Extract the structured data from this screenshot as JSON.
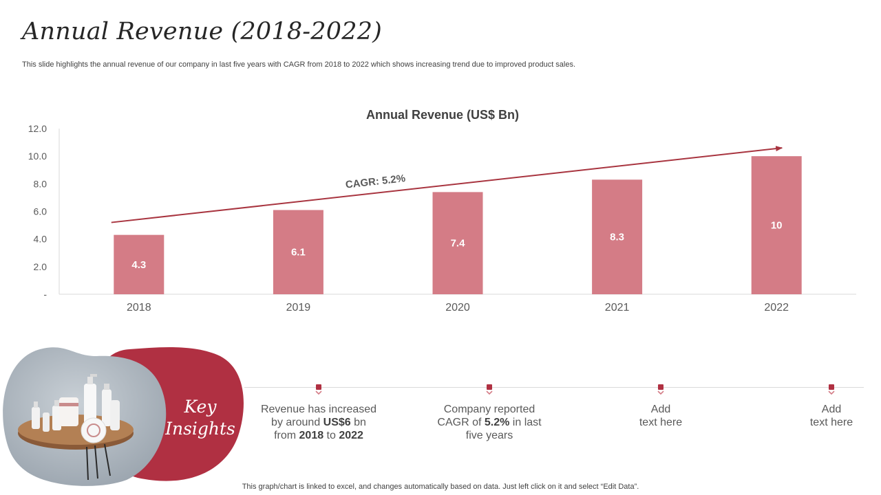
{
  "slide": {
    "title": "Annual Revenue (2018-2022)",
    "subtitle": "This slide highlights the annual revenue of our company in last five years with CAGR from 2018 to 2022 which shows increasing trend due to improved product sales.",
    "footnote": "This graph/chart is linked to excel,  and changes automatically based on data. Just left click on it and select “Edit Data”."
  },
  "colors": {
    "bar": "#d47c86",
    "accent": "#b03042",
    "trend": "#a8343f"
  },
  "chart_data": {
    "type": "bar",
    "title": "Annual Revenue (US$ Bn)",
    "categories": [
      "2018",
      "2019",
      "2020",
      "2021",
      "2022"
    ],
    "values": [
      4.3,
      6.1,
      7.4,
      8.3,
      10
    ],
    "value_labels": [
      "4.3",
      "6.1",
      "7.4",
      "8.3",
      "10"
    ],
    "ylim": [
      0,
      12
    ],
    "yticks": [
      "-",
      "2.0",
      "4.0",
      "6.0",
      "8.0",
      "10.0",
      "12.0"
    ],
    "xlabel": "",
    "ylabel": "",
    "grid": false,
    "trend": {
      "label": "CAGR: 5.2%",
      "from": 5.2,
      "to": 10.6
    }
  },
  "insights": {
    "heading_line1": "Key",
    "heading_line2": "Insights",
    "items": [
      {
        "parts": [
          {
            "t": "Revenue has increased",
            "br": true
          },
          {
            "t": "by around "
          },
          {
            "t": "US$6",
            "b": true
          },
          {
            "t": " bn",
            "br": true
          },
          {
            "t": "from "
          },
          {
            "t": "2018",
            "b": true
          },
          {
            "t": " to "
          },
          {
            "t": "2022",
            "b": true
          }
        ]
      },
      {
        "parts": [
          {
            "t": "Company reported",
            "br": true
          },
          {
            "t": "CAGR of "
          },
          {
            "t": "5.2%",
            "b": true
          },
          {
            "t": " in last",
            "br": true
          },
          {
            "t": "five years"
          }
        ]
      },
      {
        "parts": [
          {
            "t": "Add",
            "br": true
          },
          {
            "t": "text here"
          }
        ]
      },
      {
        "parts": [
          {
            "t": "Add",
            "br": true
          },
          {
            "t": "text here"
          }
        ]
      }
    ]
  }
}
